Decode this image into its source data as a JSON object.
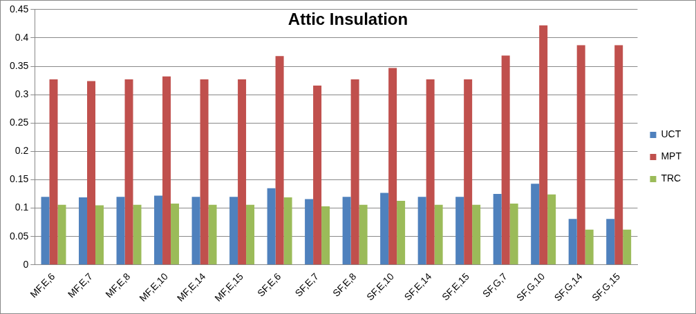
{
  "chart_data": {
    "type": "bar",
    "title": "Attic Insulation",
    "categories": [
      "MF,E,6",
      "MF,E,7",
      "MF,E,8",
      "MF,E,10",
      "MF,E,14",
      "MF,E,15",
      "SF,E,6",
      "SF,E,7",
      "SF,E,8",
      "SF,E,10",
      "SF,E,14",
      "SF,E,15",
      "SF,G,7",
      "SF,G,10",
      "SF,G,14",
      "SF,G,15"
    ],
    "series": [
      {
        "name": "UCT",
        "color": "#4f81bd",
        "values": [
          0.12,
          0.119,
          0.12,
          0.122,
          0.12,
          0.12,
          0.135,
          0.116,
          0.12,
          0.127,
          0.12,
          0.12,
          0.125,
          0.143,
          0.081,
          0.081
        ]
      },
      {
        "name": "MPT",
        "color": "#c0504d",
        "values": [
          0.327,
          0.324,
          0.327,
          0.332,
          0.327,
          0.327,
          0.368,
          0.316,
          0.327,
          0.347,
          0.327,
          0.327,
          0.369,
          0.422,
          0.387,
          0.387
        ]
      },
      {
        "name": "TRC",
        "color": "#9bbb59",
        "values": [
          0.106,
          0.105,
          0.106,
          0.108,
          0.106,
          0.106,
          0.119,
          0.103,
          0.106,
          0.113,
          0.106,
          0.106,
          0.108,
          0.124,
          0.062,
          0.062
        ]
      }
    ],
    "ylim": [
      0,
      0.45
    ],
    "yticks": [
      0,
      0.05,
      0.1,
      0.15,
      0.2,
      0.25,
      0.3,
      0.35,
      0.4,
      0.45
    ],
    "grid": "y",
    "legend": "right"
  }
}
